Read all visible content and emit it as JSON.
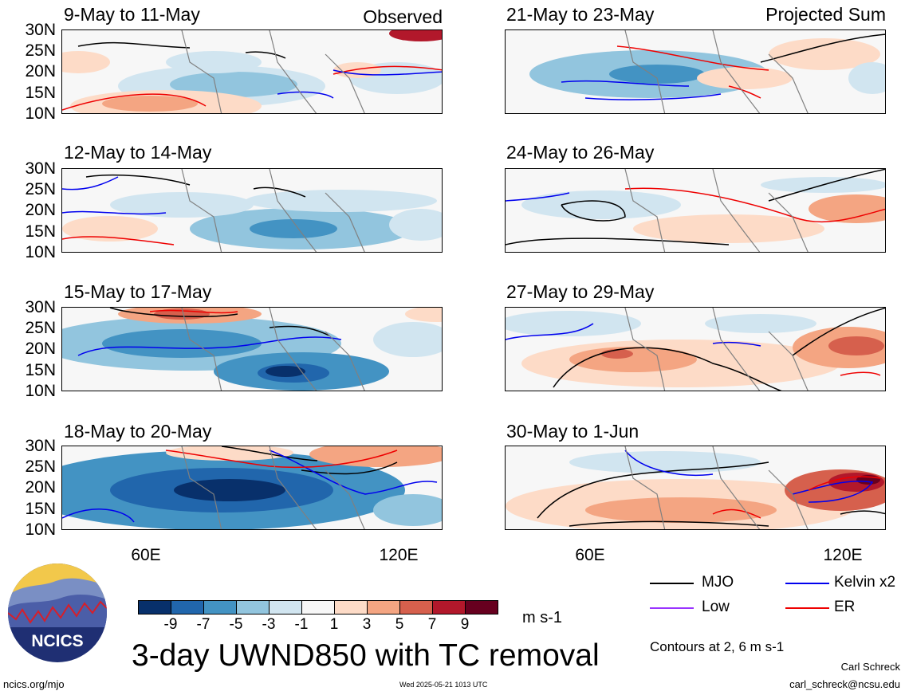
{
  "panels": [
    {
      "title": "9-May to 11-May",
      "tag": "Observed"
    },
    {
      "title": "12-May to 14-May",
      "tag": ""
    },
    {
      "title": "15-May to 17-May",
      "tag": ""
    },
    {
      "title": "18-May to 20-May",
      "tag": ""
    },
    {
      "title": "21-May to 23-May",
      "tag": "Projected Sum"
    },
    {
      "title": "24-May to 26-May",
      "tag": ""
    },
    {
      "title": "27-May to 29-May",
      "tag": ""
    },
    {
      "title": "30-May to 1-Jun",
      "tag": ""
    }
  ],
  "lat_labels": [
    "30N",
    "25N",
    "20N",
    "15N",
    "10N"
  ],
  "lon_labels": [
    "60E",
    "120E"
  ],
  "colorbar": {
    "ticks": [
      "-9",
      "-7",
      "-5",
      "-3",
      "-1",
      "1",
      "3",
      "5",
      "7",
      "9"
    ],
    "colors": [
      "#08306b",
      "#2166ac",
      "#4393c3",
      "#92c5de",
      "#d1e5f0",
      "#f7f7f7",
      "#fddbc7",
      "#f4a582",
      "#d6604d",
      "#b2182b",
      "#67001f"
    ],
    "units": "m s-1"
  },
  "legend": {
    "items": [
      {
        "label": "MJO",
        "color": "#000000"
      },
      {
        "label": "Kelvin x2",
        "color": "#0000ee"
      },
      {
        "label": "Low",
        "color": "#9933ff"
      },
      {
        "label": "ER",
        "color": "#ee0000"
      }
    ],
    "contours_note": "Contours at 2, 6 m s-1"
  },
  "title": "3-day UWND850 with TC removal",
  "logo_text": "NCICS",
  "footer": {
    "url": "ncics.org/mjo",
    "timestamp": "Wed 2025-05-21 1013 UTC",
    "author": "Carl Schreck",
    "email": "carl_schreck@ncsu.edu"
  }
}
